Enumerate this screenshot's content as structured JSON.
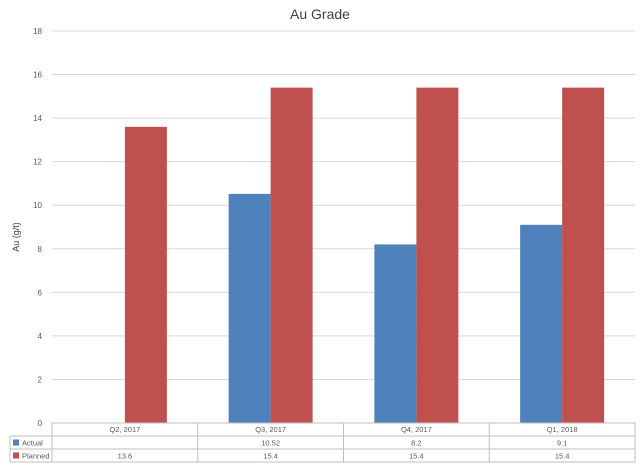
{
  "chart_data": {
    "type": "bar",
    "title": "Au Grade",
    "xlabel": "",
    "ylabel": "Au (g/t)",
    "categories": [
      "Q2, 2017",
      "Q3, 2017",
      "Q4, 2017",
      "Q1, 2018"
    ],
    "series": [
      {
        "name": "Actual",
        "color": "#4f81bd",
        "values": [
          null,
          10.52,
          8.2,
          9.1
        ],
        "labels": [
          "",
          "10.52",
          "8.2",
          "9.1"
        ]
      },
      {
        "name": "Planned",
        "color": "#c0504d",
        "values": [
          13.6,
          15.4,
          15.4,
          15.4
        ],
        "labels": [
          "13.6",
          "15.4",
          "15.4",
          "15.4"
        ]
      }
    ],
    "ylim": [
      0,
      18
    ],
    "yticks": [
      "0",
      "2",
      "4",
      "6",
      "8",
      "10",
      "12",
      "14",
      "16",
      "18"
    ],
    "grid": true,
    "legend": "data-table"
  }
}
